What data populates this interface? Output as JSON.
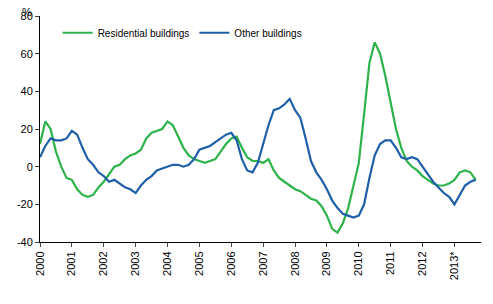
{
  "chart_data": {
    "type": "line",
    "ylabel": "%",
    "categories": [
      "2000",
      null,
      null,
      null,
      null,
      null,
      "2001",
      null,
      null,
      null,
      null,
      null,
      "2002",
      null,
      null,
      null,
      null,
      null,
      "2003",
      null,
      null,
      null,
      null,
      null,
      "2004",
      null,
      null,
      null,
      null,
      null,
      "2005",
      null,
      null,
      null,
      null,
      null,
      "2006",
      null,
      null,
      null,
      null,
      null,
      "2007",
      null,
      null,
      null,
      null,
      null,
      "2008",
      null,
      null,
      null,
      null,
      null,
      "2009",
      null,
      null,
      null,
      null,
      null,
      "2010",
      null,
      null,
      null,
      null,
      null,
      "2011",
      null,
      null,
      null,
      null,
      null,
      "2012",
      null,
      null,
      null,
      null,
      null,
      "2013*",
      null,
      null,
      null,
      null
    ],
    "series": [
      {
        "name": "Residential buildings",
        "color": "#2db34a",
        "values": [
          12,
          24,
          20,
          8,
          0,
          -6,
          -7,
          -12,
          -15,
          -16,
          -15,
          -11,
          -8,
          -4,
          0,
          1,
          4,
          6,
          7,
          9,
          15,
          18,
          19,
          20,
          24,
          22,
          16,
          10,
          6,
          4,
          3,
          2,
          3,
          4,
          8,
          12,
          15,
          16,
          10,
          5,
          3,
          3,
          2,
          4,
          -2,
          -6,
          -8,
          -10,
          -12,
          -13,
          -15,
          -17,
          -18,
          -21,
          -26,
          -33,
          -35,
          -30,
          -22,
          -10,
          2,
          28,
          55,
          66,
          60,
          48,
          33,
          20,
          10,
          3,
          0,
          -2,
          -5,
          -7,
          -9,
          -10,
          -10,
          -9,
          -7,
          -3,
          -2,
          -3,
          -7
        ]
      },
      {
        "name": "Other buildings",
        "color": "#1f5fa8",
        "values": [
          5,
          11,
          15,
          14,
          14,
          15,
          19,
          17,
          10,
          4,
          1,
          -3,
          -5,
          -8,
          -7,
          -9,
          -11,
          -12,
          -14,
          -10,
          -7,
          -5,
          -2,
          -1,
          0,
          1,
          1,
          0,
          1,
          4,
          9,
          10,
          11,
          13,
          15,
          17,
          18,
          14,
          4,
          -2,
          -3,
          2,
          12,
          22,
          30,
          31,
          33,
          36,
          30,
          26,
          15,
          3,
          -3,
          -7,
          -12,
          -18,
          -22,
          -25,
          -26,
          -27,
          -26,
          -20,
          -6,
          6,
          12,
          14,
          14,
          10,
          5,
          4,
          5,
          4,
          0,
          -4,
          -8,
          -11,
          -14,
          -16,
          -20,
          -15,
          -10,
          -8,
          -7
        ]
      }
    ],
    "ylim": [
      -40,
      80
    ],
    "yticks": [
      -40,
      -20,
      0,
      20,
      40,
      60,
      80
    ],
    "grid": false,
    "legend": "top left"
  }
}
